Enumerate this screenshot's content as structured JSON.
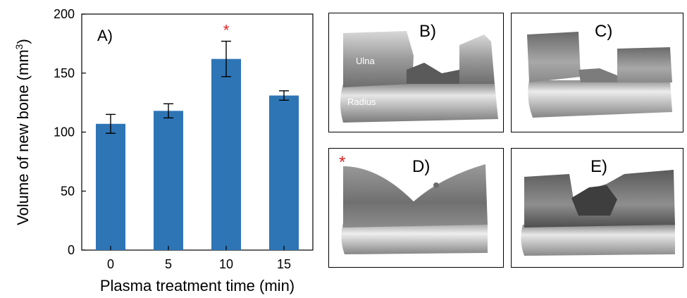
{
  "chart_data": {
    "type": "bar",
    "panel_label": "A)",
    "categories": [
      "0",
      "5",
      "10",
      "15"
    ],
    "values": [
      107,
      118,
      162,
      131
    ],
    "errors": [
      8,
      6,
      15,
      4
    ],
    "significant": [
      false,
      false,
      true,
      false
    ],
    "significance_marker": "*",
    "xlabel": "Plasma treatment time (min)",
    "ylabel": "Volume of new bone (mm",
    "ylabel_sup": "3",
    "ylabel_end": ")",
    "ylim": [
      0,
      200
    ],
    "yticks": [
      0,
      50,
      100,
      150,
      200
    ],
    "bar_color": "#2e75b6",
    "marker_color": "#e0201b",
    "grid": false,
    "legend": "none"
  },
  "image_panels": [
    {
      "label": "B)",
      "annotations": [
        "Ulna",
        "Radius"
      ],
      "marker": ""
    },
    {
      "label": "C)",
      "annotations": [],
      "marker": ""
    },
    {
      "label": "D)",
      "annotations": [],
      "marker": "*"
    },
    {
      "label": "E)",
      "annotations": [],
      "marker": ""
    }
  ]
}
